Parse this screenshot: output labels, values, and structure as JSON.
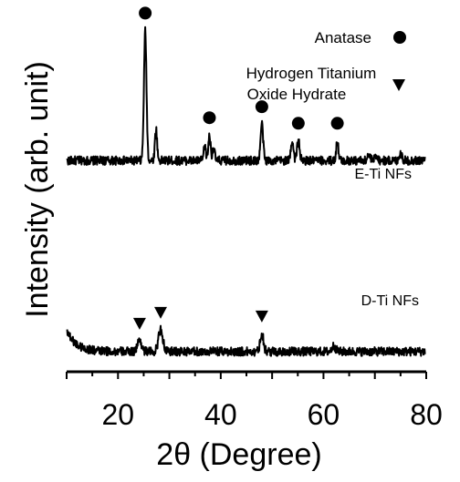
{
  "chart_data": {
    "type": "line",
    "xlabel": "2θ (Degree)",
    "ylabel": "Intensity (arb. unit)",
    "xlim": [
      10,
      80
    ],
    "ylim": [
      0,
      1
    ],
    "x_ticks": [
      20,
      40,
      60,
      80
    ],
    "grid": false,
    "legend_position": "top-right",
    "legend": [
      {
        "label": "Anatase",
        "marker": "circle"
      },
      {
        "label": "Hydrogen Titanium",
        "label2": "Oxide Hydrate",
        "marker": "triangle-down"
      }
    ],
    "series": [
      {
        "name": "E-Ti NFs",
        "baseline": 0.575,
        "noise": 0.012,
        "peaks": [
          {
            "x": 25.3,
            "height": 0.355,
            "width": 0.35
          },
          {
            "x": 27.4,
            "height": 0.085,
            "width": 0.3
          },
          {
            "x": 36.9,
            "height": 0.04,
            "width": 0.3
          },
          {
            "x": 37.8,
            "height": 0.07,
            "width": 0.3
          },
          {
            "x": 38.6,
            "height": 0.035,
            "width": 0.3
          },
          {
            "x": 48.0,
            "height": 0.1,
            "width": 0.35
          },
          {
            "x": 53.9,
            "height": 0.055,
            "width": 0.35
          },
          {
            "x": 55.1,
            "height": 0.055,
            "width": 0.35
          },
          {
            "x": 62.7,
            "height": 0.055,
            "width": 0.3
          },
          {
            "x": 68.8,
            "height": 0.015,
            "width": 0.4
          },
          {
            "x": 70.3,
            "height": 0.015,
            "width": 0.4
          },
          {
            "x": 75.0,
            "height": 0.02,
            "width": 0.4
          }
        ],
        "markers": [
          {
            "x": 25.3,
            "type": "circle"
          },
          {
            "x": 37.8,
            "type": "circle"
          },
          {
            "x": 48.0,
            "type": "circle"
          },
          {
            "x": 55.1,
            "type": "circle"
          },
          {
            "x": 62.7,
            "type": "circle"
          }
        ]
      },
      {
        "name": "D-Ti NFs",
        "baseline": 0.055,
        "noise": 0.012,
        "decay": {
          "amplitude": 0.06,
          "rate": 0.55
        },
        "peaks": [
          {
            "x": 24.2,
            "height": 0.03,
            "width": 0.6
          },
          {
            "x": 28.3,
            "height": 0.06,
            "width": 0.6
          },
          {
            "x": 48.0,
            "height": 0.05,
            "width": 0.45
          },
          {
            "x": 62.0,
            "height": 0.015,
            "width": 0.5
          }
        ],
        "markers": [
          {
            "x": 24.2,
            "type": "triangle-down"
          },
          {
            "x": 28.3,
            "type": "triangle-down"
          },
          {
            "x": 48.0,
            "type": "triangle-down"
          }
        ]
      }
    ]
  }
}
